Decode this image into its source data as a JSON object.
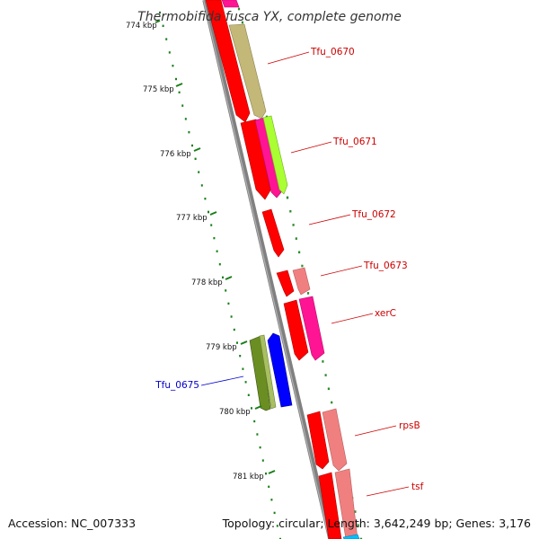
{
  "title": "Thermobifida fusca YX, complete genome",
  "accession_text": "Accession: NC_007333",
  "summary_text": "Topology: circular; Length: 3,642,249 bp; Genes: 3,176",
  "colors": {
    "backbone": "#808080",
    "tick": "#1a7f1a",
    "forward_label": "#cc0000",
    "reverse_label": "#0000cc"
  },
  "ticks": [
    "774 kbp",
    "775 kbp",
    "776 kbp",
    "777 kbp",
    "778 kbp",
    "779 kbp",
    "780 kbp",
    "781 kbp"
  ],
  "gene_labels": [
    {
      "text": "Tfu_0670",
      "strand": "forward"
    },
    {
      "text": "Tfu_0671",
      "strand": "forward"
    },
    {
      "text": "Tfu_0672",
      "strand": "forward"
    },
    {
      "text": "Tfu_0673",
      "strand": "forward"
    },
    {
      "text": "xerC",
      "strand": "forward"
    },
    {
      "text": "rpsB",
      "strand": "forward"
    },
    {
      "text": "tsf",
      "strand": "forward"
    },
    {
      "text": "Tfu_0675",
      "strand": "reverse"
    }
  ]
}
